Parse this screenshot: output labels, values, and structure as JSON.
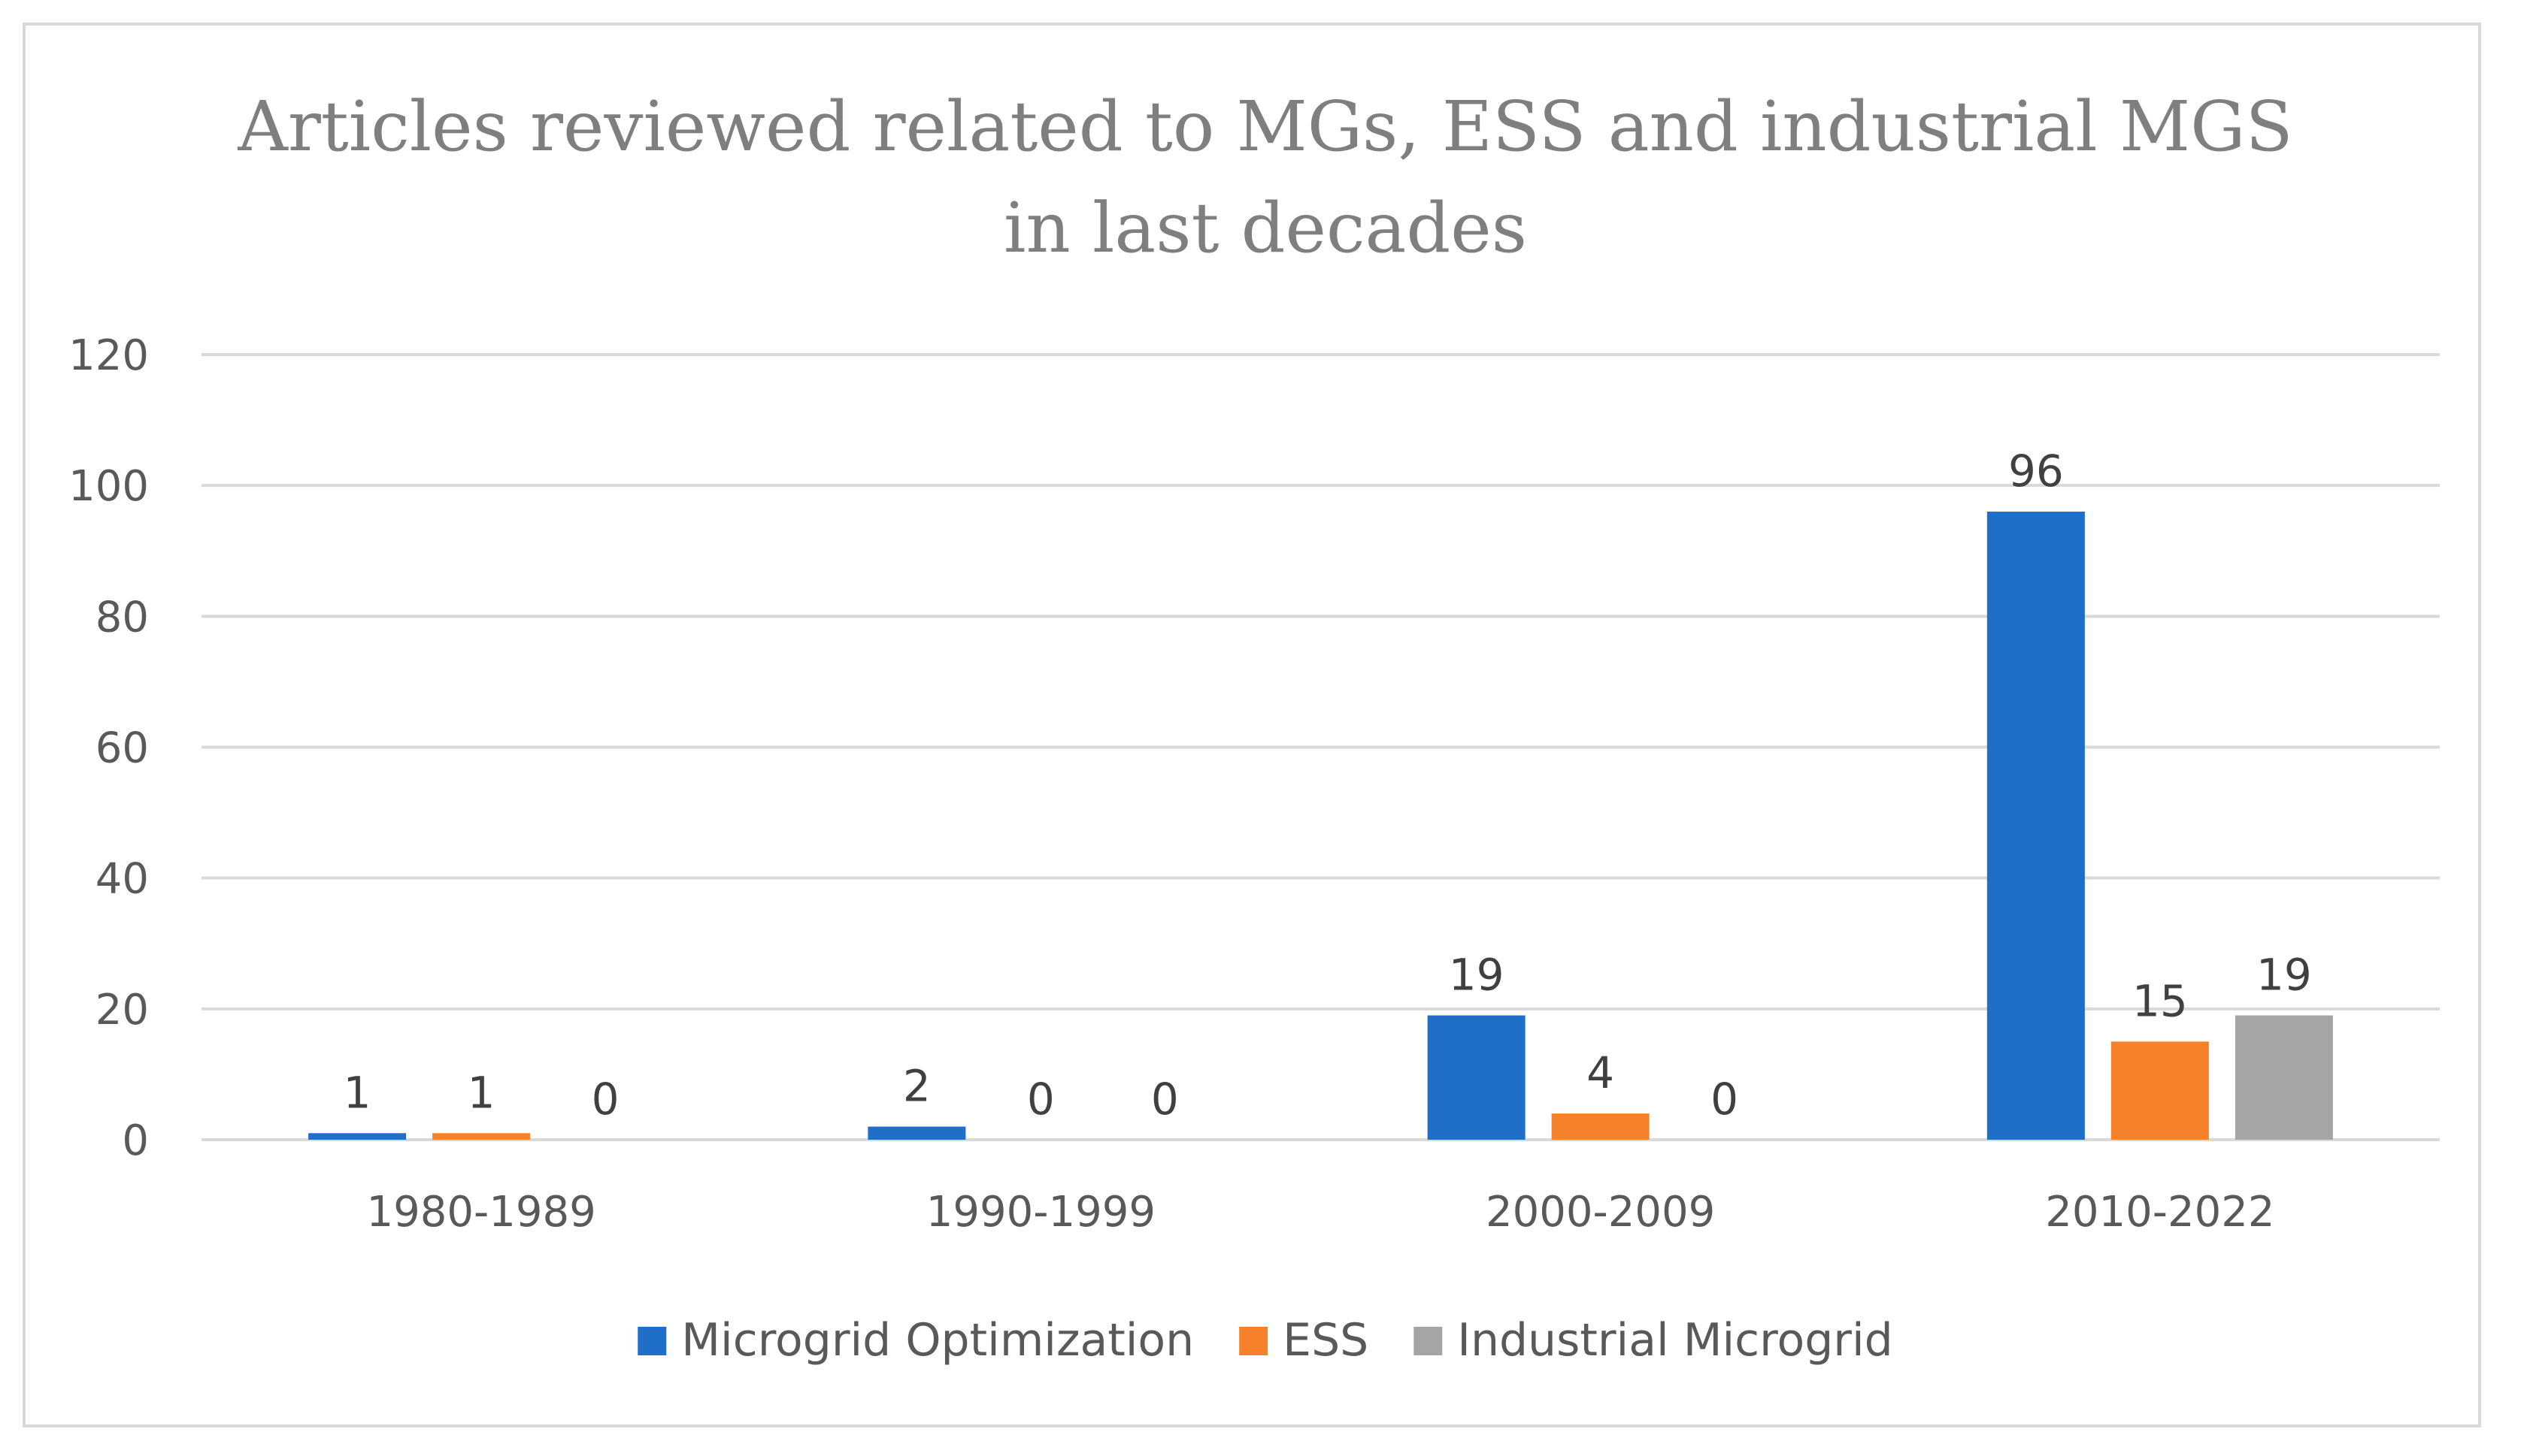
{
  "chart_data": {
    "type": "bar",
    "title": "Articles reviewed related to MGs, ESS and industrial MGS in last decades",
    "title_lines": [
      "Articles reviewed related to MGs, ESS and industrial MGS",
      "in last decades"
    ],
    "categories": [
      "1980-1989",
      "1990-1999",
      "2000-2009",
      "2010-2022"
    ],
    "series": [
      {
        "name": "Microgrid Optimization",
        "color": "#1f6fc9",
        "values": [
          1,
          2,
          19,
          96
        ]
      },
      {
        "name": "ESS",
        "color": "#f5822a",
        "values": [
          1,
          0,
          4,
          15
        ]
      },
      {
        "name": "Industrial Microgrid",
        "color": "#a5a5a5",
        "values": [
          0,
          0,
          0,
          19
        ]
      }
    ],
    "ylim": [
      0,
      120
    ],
    "yticks": [
      0,
      20,
      40,
      60,
      80,
      100,
      120
    ],
    "xlabel": "",
    "ylabel": "",
    "grid": true,
    "legend_position": "bottom"
  }
}
